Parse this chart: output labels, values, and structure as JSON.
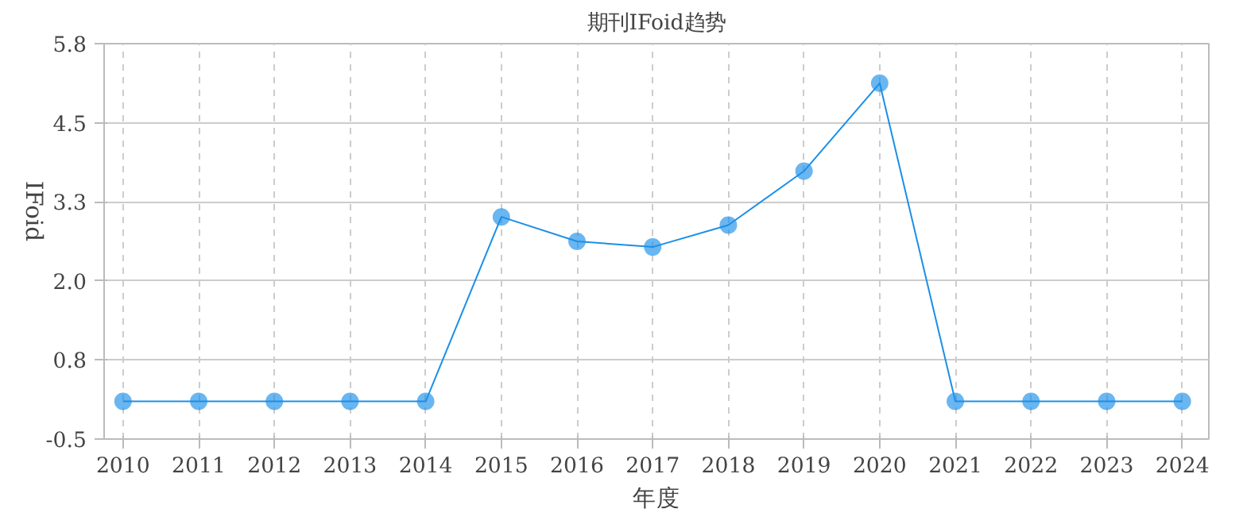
{
  "chart_data": {
    "type": "line",
    "title": "期刊IFoid趋势",
    "xlabel": "年度",
    "ylabel": "IFoid",
    "categories": [
      "2010",
      "2011",
      "2012",
      "2013",
      "2014",
      "2015",
      "2016",
      "2017",
      "2018",
      "2019",
      "2020",
      "2021",
      "2022",
      "2023",
      "2024"
    ],
    "series": [
      {
        "color": "#1a8fe8",
        "values": [
          0.1,
          0.1,
          0.1,
          0.1,
          0.1,
          3.04,
          2.65,
          2.56,
          2.91,
          3.77,
          5.17,
          0.1,
          0.1,
          0.1,
          0.1
        ]
      }
    ],
    "ylim": [
      -0.5,
      5.8
    ],
    "yticks": [
      -0.5,
      {
        "value": 0.76,
        "label": "0.8"
      },
      {
        "value": 2.02,
        "label": "2.0"
      },
      {
        "value": 3.28,
        "label": "3.3"
      },
      {
        "value": 4.54,
        "label": "4.5"
      },
      5.8
    ],
    "grid": true,
    "marker": "circle",
    "line_style": "solid"
  }
}
